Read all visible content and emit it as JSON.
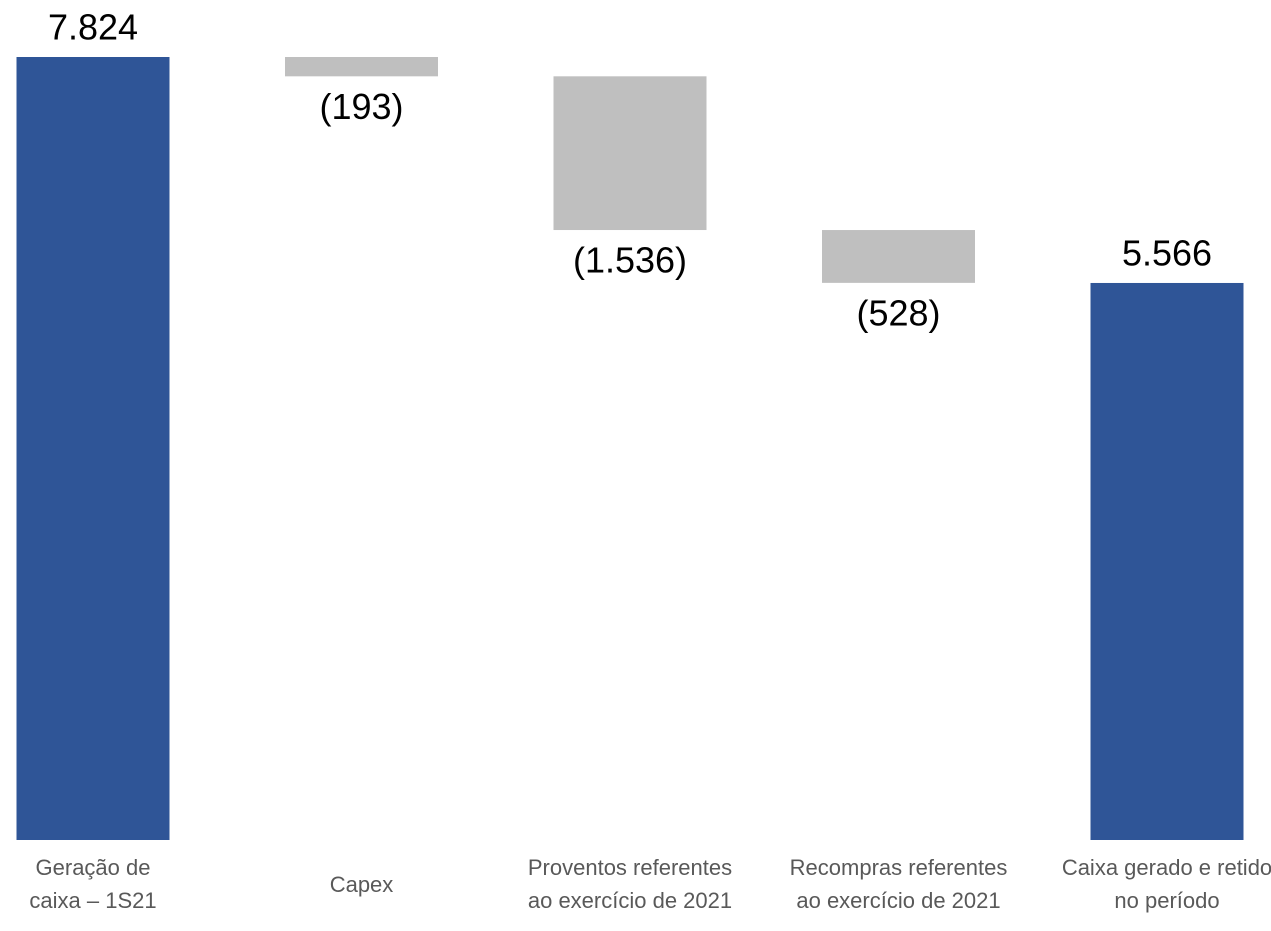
{
  "chart_data": {
    "type": "waterfall",
    "categories": [
      "Geração de caixa – 1S21",
      "Capex",
      "Proventos referentes ao exercício de 2021",
      "Recompras referentes ao exercício de 2021",
      "Caixa gerado e retido no período"
    ],
    "values": [
      7824,
      -193,
      -1536,
      -528,
      5566
    ],
    "value_labels": [
      "7.824",
      "(193)",
      "(1.536)",
      "(528)",
      "5.566"
    ],
    "measure": [
      "absolute",
      "relative",
      "relative",
      "relative",
      "total"
    ],
    "total_color": "#2f5597",
    "delta_color": "#bfbfbf"
  }
}
